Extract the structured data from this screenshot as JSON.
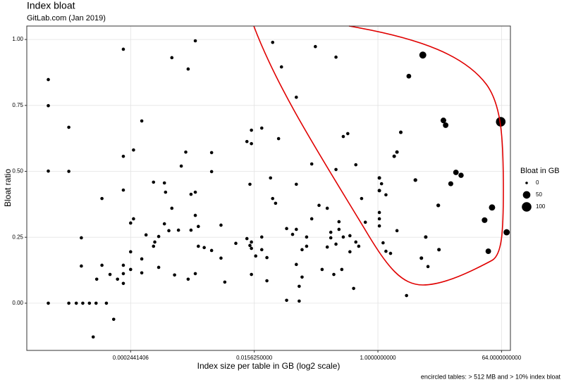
{
  "chart_data": {
    "type": "scatter",
    "title": "Index bloat",
    "subtitle": "GitLab.com (Jan 2019)",
    "x_label": "Index size per table in GB (log2 scale)",
    "y_label": "Bloat ratio",
    "caption": "encircled tables: > 512 MB and > 10% index bloat",
    "xlog": 2,
    "grid": true,
    "color": "#000000",
    "xlim": [
      7.42e-06,
      86.3
    ],
    "ylim": [
      -0.179,
      1.051
    ],
    "xticks": [
      0.0002441406,
      {
        "value": 0.015625,
        "label": "0.0156250000"
      },
      {
        "value": 1,
        "label": "1.0000000000"
      },
      {
        "value": 64,
        "label": "64.0000000000"
      }
    ],
    "yticks": [
      {
        "value": 0,
        "label": "0.00"
      },
      {
        "value": 0.25,
        "label": "0.25"
      },
      {
        "value": 0.5,
        "label": "0.50"
      },
      {
        "value": 0.75,
        "label": "0.75"
      },
      {
        "value": 1,
        "label": "1.00"
      }
    ],
    "legend": {
      "title": "Bloat in GB",
      "sizes": [
        0,
        50,
        100
      ]
    },
    "x": [
      1.53e-05,
      1.53e-05,
      1.53e-05,
      1.53e-05,
      3.05e-05,
      3.05e-05,
      3.05e-05,
      3.92e-05,
      4.88e-05,
      6.1e-05,
      7.63e-05,
      0.000108,
      4.65e-05,
      4.65e-05,
      7.8e-05,
      9.3e-05,
      9.3e-05,
      0.000122,
      0.000138,
      6.93e-05,
      0.000157,
      0.000191,
      0.000191,
      0.000191,
      0.000191,
      0.000191,
      0.000191,
      0.000244,
      0.000244,
      0.000244,
      0.000269,
      0.000269,
      0.000355,
      0.000355,
      0.000355,
      0.00041,
      0.000527,
      0.000527,
      0.00055,
      0.000627,
      0.000627,
      0.00076,
      0.00076,
      0.00079,
      0.000883,
      0.000977,
      0.000977,
      0.00107,
      0.00122,
      0.00134,
      0.00156,
      0.00169,
      0.00169,
      0.00186,
      0.00186,
      0.00215,
      0.00215,
      0.00215,
      0.00215,
      0.00238,
      0.00238,
      0.0029,
      0.00372,
      0.00372,
      0.00372,
      0.0051,
      0.0051,
      0.0058,
      0.0084,
      0.0122,
      0.0122,
      0.0135,
      0.0135,
      0.0142,
      0.0142,
      0.0142,
      0.0142,
      0.0142,
      0.0164,
      0.0201,
      0.0201,
      0.0201,
      0.0239,
      0.0239,
      0.027,
      0.029,
      0.029,
      0.032,
      0.0354,
      0.039,
      0.0464,
      0.0464,
      0.0567,
      0.0643,
      0.0643,
      0.0643,
      0.0643,
      0.0708,
      0.0708,
      0.078,
      0.078,
      0.0909,
      0.0909,
      0.108,
      0.108,
      0.122,
      0.138,
      0.153,
      0.182,
      0.182,
      0.205,
      0.205,
      0.227,
      0.244,
      0.244,
      0.244,
      0.27,
      0.27,
      0.297,
      0.312,
      0.312,
      0.363,
      0.39,
      0.39,
      0.442,
      0.476,
      0.476,
      0.525,
      0.578,
      0.655,
      1.05,
      1.05,
      1.05,
      1.05,
      1.05,
      1.13,
      1.19,
      1.31,
      1.31,
      1.53,
      1.73,
      1.9,
      1.9,
      2.16,
      2.62,
      2.83,
      3.53,
      4.32,
      4.53,
      5.0,
      5.39,
      7.62,
      7.8,
      9.06,
      9.77,
      11.6,
      13.8,
      16.4,
      36.2,
      41,
      46.5,
      62.3,
      76
    ],
    "values": [
      0.848,
      0.749,
      0.501,
      0,
      0.667,
      0.5,
      0,
      0,
      0,
      0,
      0,
      0,
      0.248,
      0.141,
      0.091,
      0.397,
      0.144,
      0.109,
      -0.061,
      -0.128,
      0.091,
      0.963,
      0.557,
      0.429,
      0.144,
      0.112,
      0.075,
      0.304,
      0.195,
      0.128,
      0.32,
      0.581,
      0.691,
      0.168,
      0.115,
      0.259,
      0.459,
      0.216,
      0.232,
      0.253,
      0.136,
      0.456,
      0.301,
      0.421,
      0.275,
      0.931,
      0.36,
      0.107,
      0.277,
      0.52,
      0.573,
      0.888,
      0.091,
      0.413,
      0.277,
      0.995,
      0.421,
      0.333,
      0.112,
      0.291,
      0.216,
      0.211,
      0.571,
      0.499,
      0.2,
      0.296,
      0.171,
      0.08,
      0.227,
      0.613,
      0.245,
      0.451,
      0.219,
      0.656,
      0.605,
      0.232,
      0.208,
      0.109,
      0.179,
      0.664,
      0.251,
      0.203,
      0.085,
      0.173,
      0.475,
      0.989,
      0.397,
      0.379,
      0.624,
      0.896,
      0.011,
      0.283,
      0.261,
      0.781,
      0.451,
      0.28,
      0.147,
      0.008,
      0.064,
      0.203,
      0.099,
      0.251,
      0.216,
      0.32,
      0.528,
      0.973,
      0.371,
      0.128,
      0.213,
      0.36,
      0.248,
      0.269,
      0.109,
      0.933,
      0.224,
      0.507,
      0.309,
      0.28,
      0.128,
      0.632,
      0.251,
      0.643,
      0.256,
      0.195,
      0.056,
      0.525,
      0.232,
      0.216,
      0.397,
      0.307,
      0.475,
      0.427,
      0.344,
      0.32,
      0.293,
      0.453,
      0.229,
      0.411,
      0.197,
      0.189,
      0.557,
      0.573,
      0.275,
      0.648,
      0.029,
      0.861,
      0.467,
      0.171,
      0.941,
      0.251,
      0.139,
      0.371,
      0.203,
      0.693,
      0.675,
      0.453,
      0.496,
      0.485,
      0.315,
      0.197,
      0.363,
      0.688,
      0.269
    ],
    "sizes": [
      1,
      1,
      1,
      1,
      1,
      1,
      1,
      1,
      1,
      1,
      1,
      1,
      1,
      1,
      1,
      1,
      1,
      1,
      1,
      1,
      1,
      1,
      1,
      1,
      1,
      1,
      1,
      1,
      1,
      1,
      1,
      1,
      1,
      1,
      1,
      1,
      1,
      1,
      1,
      1,
      1,
      1,
      1,
      1,
      1,
      1,
      1,
      1,
      1,
      1,
      1,
      1,
      1,
      1,
      1,
      1,
      1,
      1,
      1,
      1,
      1,
      1,
      1,
      1,
      1,
      1,
      1,
      1,
      1,
      1,
      1,
      1,
      1,
      1,
      1,
      1,
      1,
      1,
      1,
      1,
      1,
      1,
      1,
      1,
      1,
      1,
      1,
      1,
      1,
      1,
      1,
      1,
      1,
      1,
      1,
      1,
      1,
      1,
      1,
      1,
      1,
      1,
      1,
      1,
      1,
      1,
      1,
      1,
      1,
      1,
      1,
      1,
      1,
      1,
      1,
      1,
      1,
      1,
      1,
      1,
      1,
      1,
      1,
      1,
      1,
      1,
      1,
      1,
      1,
      1,
      2,
      2,
      1,
      1,
      1,
      1,
      1,
      1,
      1,
      1,
      2,
      2,
      1,
      2,
      1,
      10,
      3,
      2,
      40,
      2,
      1,
      3,
      2,
      20,
      18,
      12,
      18,
      15,
      20,
      18,
      28,
      100,
      28
    ]
  }
}
